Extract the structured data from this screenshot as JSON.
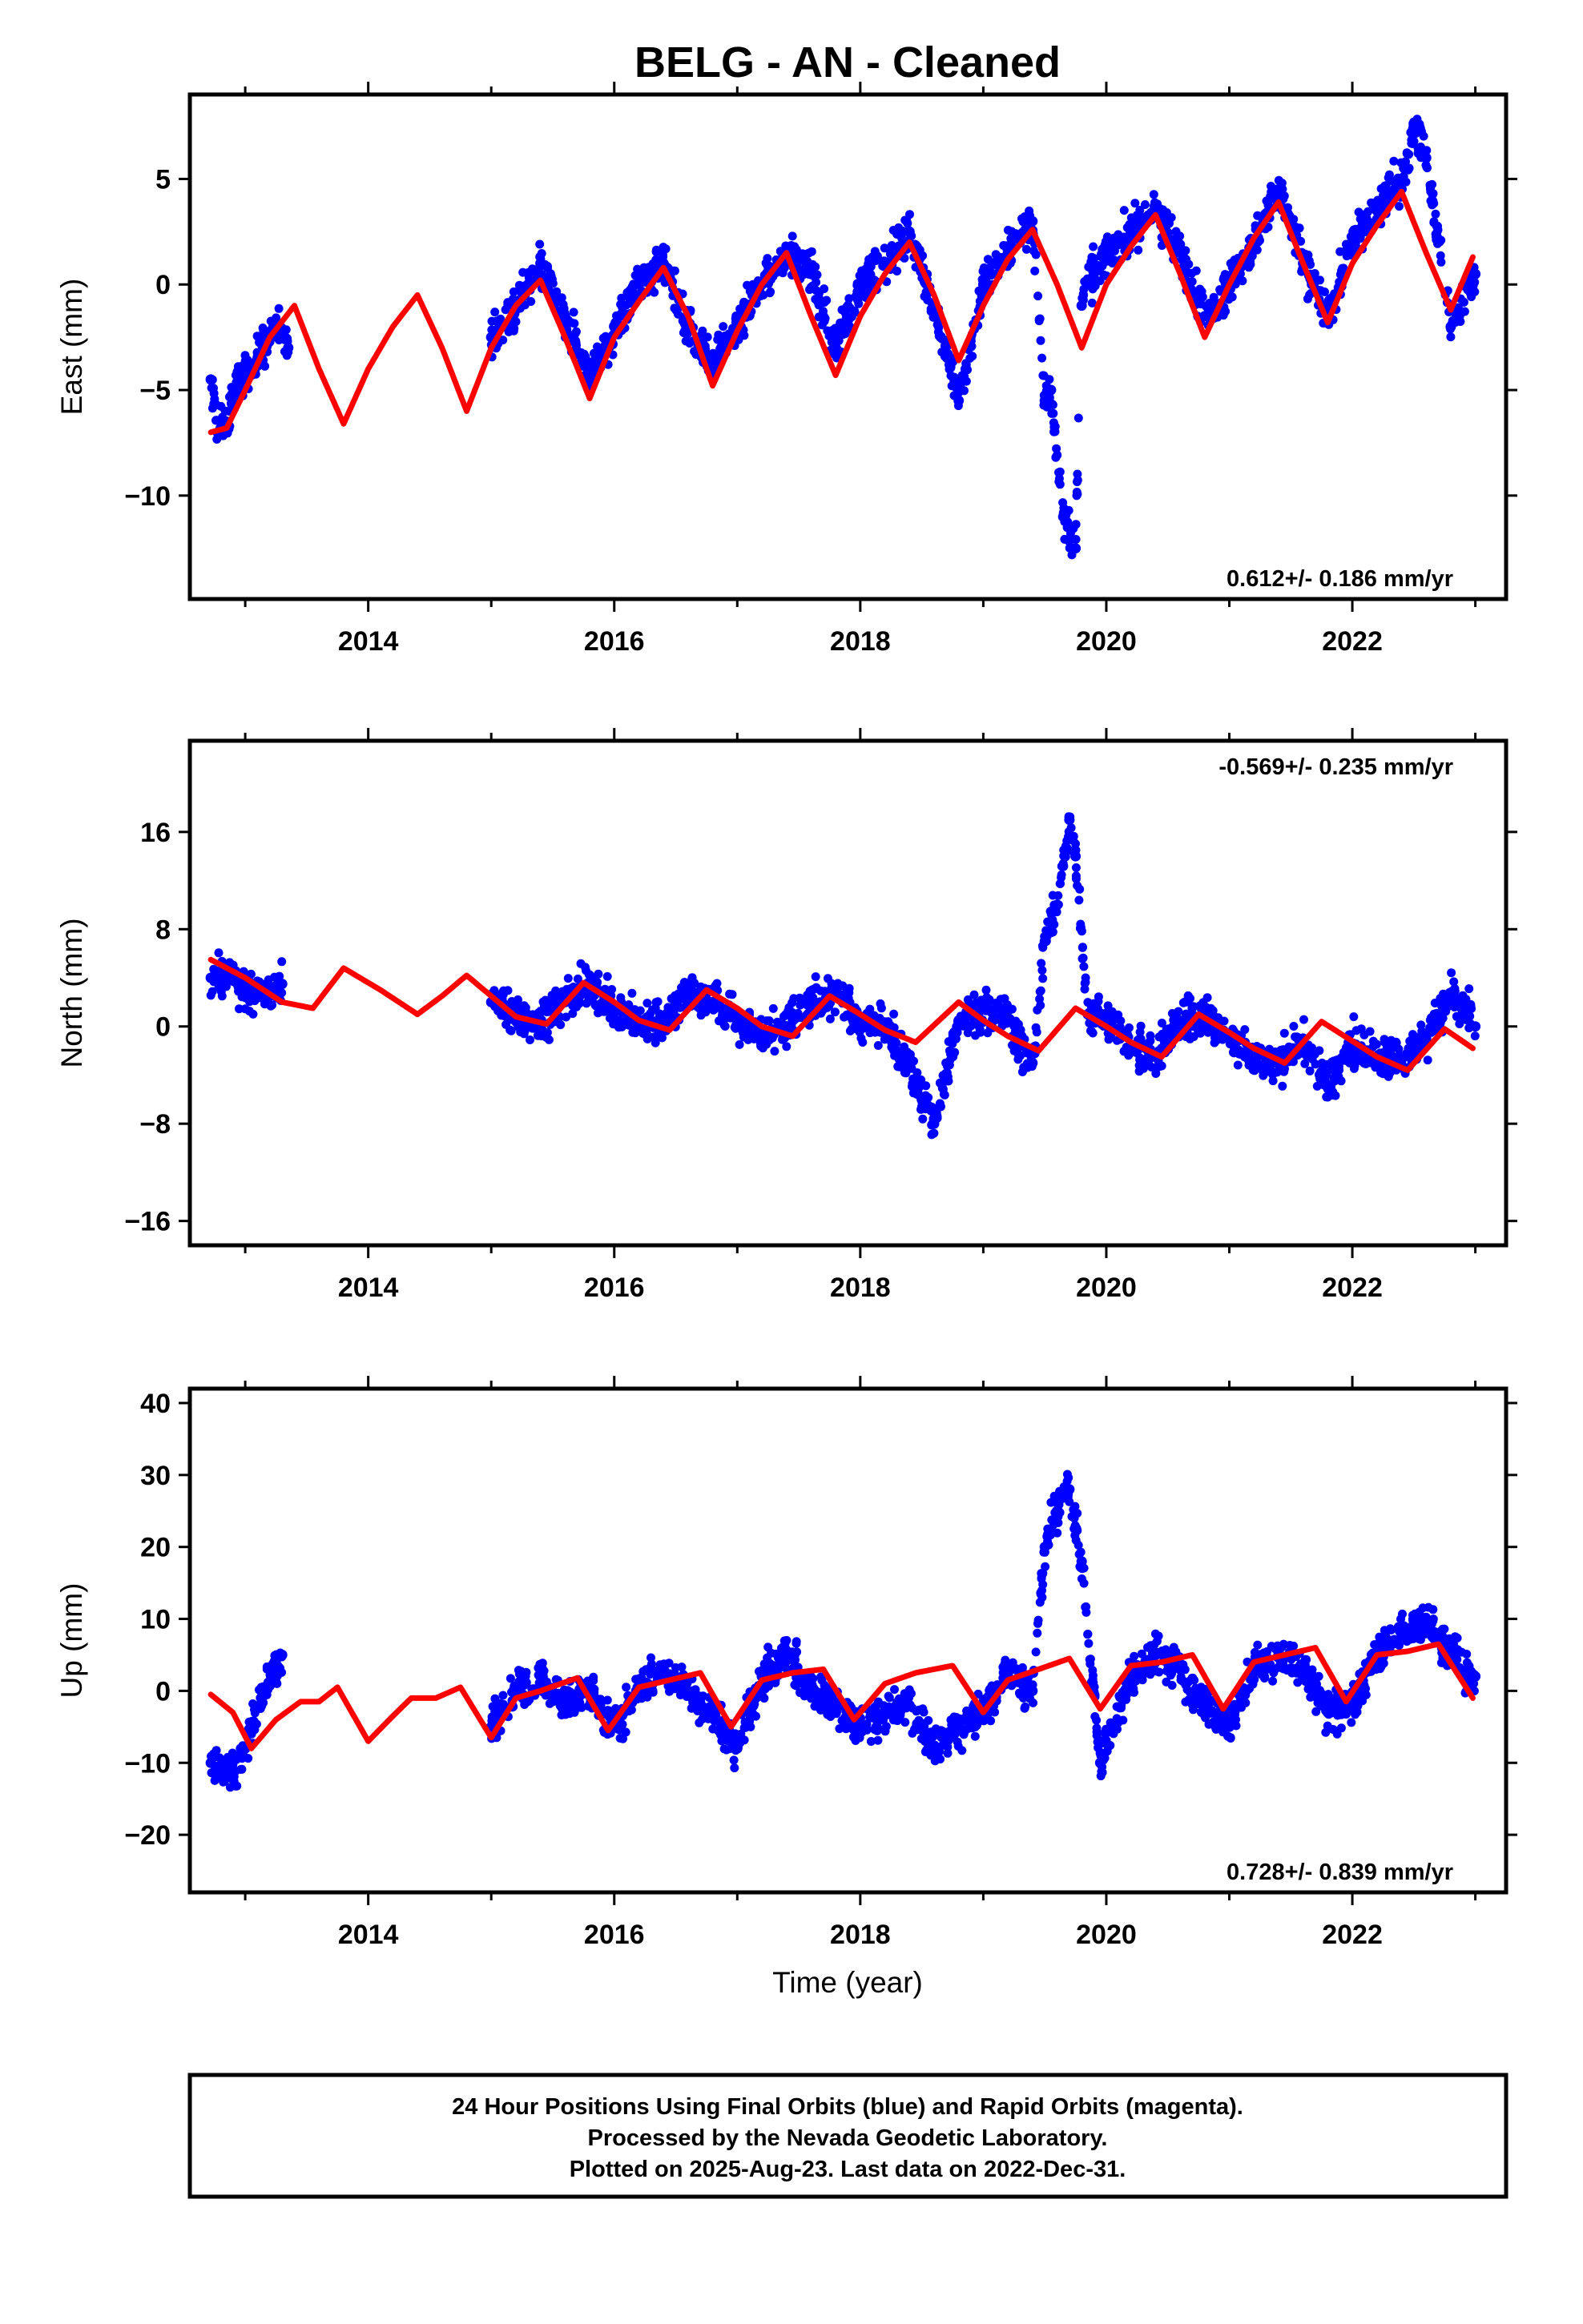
{
  "title": "BELG  - AN - Cleaned",
  "x_axis_label": "Time (year)",
  "footer": {
    "line1": "24 Hour Positions Using Final Orbits (blue) and Rapid Orbits (magenta).",
    "line2": "Processed by the Nevada Geodetic Laboratory.",
    "line3": "Plotted on 2025-Aug-23. Last data on 2022-Dec-31."
  },
  "colors": {
    "points": "#0000ff",
    "model": "#ff0000",
    "axes": "#000000"
  },
  "chart_data": [
    {
      "type": "scatter",
      "component": "East",
      "ylabel": "East (mm)",
      "rate_label": "0.612+/- 0.186 mm/yr",
      "rate_position": "bottom-right",
      "xlim": [
        2012.55,
        2023.25
      ],
      "ylim": [
        -14.9,
        9.0
      ],
      "xticks": [
        2014,
        2016,
        2018,
        2020,
        2022
      ],
      "xticklabels": [
        "2014",
        "2016",
        "2018",
        "2020",
        "2022"
      ],
      "yticks": [
        5,
        0,
        -5,
        -10
      ],
      "yticklabels": [
        "5",
        "0",
        "−5",
        "−10"
      ],
      "series": [
        {
          "kind": "daily_positions",
          "x": [
            2012.72,
            2012.78,
            2012.85,
            2012.92,
            2013.0,
            2013.1,
            2013.2,
            2013.25,
            2013.3,
            2013.35,
            2015.0,
            2015.2,
            2015.4,
            2015.6,
            2015.8,
            2016.0,
            2016.2,
            2016.4,
            2016.6,
            2016.8,
            2017.0,
            2017.2,
            2017.4,
            2017.6,
            2017.8,
            2018.0,
            2018.2,
            2018.4,
            2018.6,
            2018.8,
            2019.0,
            2019.2,
            2019.4,
            2019.5,
            2019.55,
            2019.65,
            2019.75,
            2019.8,
            2019.85,
            2020.0,
            2020.2,
            2020.4,
            2020.6,
            2020.8,
            2021.0,
            2021.2,
            2021.4,
            2021.6,
            2021.8,
            2022.0,
            2022.2,
            2022.4,
            2022.5,
            2022.6,
            2022.8,
            2023.0
          ],
          "y": [
            -4.5,
            -7.0,
            -6.5,
            -5.0,
            -4.0,
            -3.5,
            -2.5,
            -2.0,
            -2.5,
            -3.0,
            -2.5,
            -1.0,
            1.0,
            -1.5,
            -4.5,
            -2.0,
            0.0,
            1.0,
            -2.0,
            -4.0,
            -2.0,
            0.0,
            1.5,
            0.5,
            -3.0,
            0.0,
            1.0,
            2.5,
            -1.0,
            -5.5,
            0.0,
            1.5,
            3.0,
            -5.5,
            -5.0,
            -11.0,
            -12.5,
            -1.0,
            0.0,
            1.5,
            2.5,
            3.5,
            1.5,
            -1.5,
            0.0,
            2.0,
            4.5,
            1.0,
            -1.5,
            2.0,
            3.5,
            5.0,
            7.5,
            6.0,
            -2.0,
            0.5
          ]
        },
        {
          "kind": "model_fit",
          "x": [
            2012.72,
            2012.85,
            2013.0,
            2013.2,
            2013.4,
            2013.6,
            2013.8,
            2014.0,
            2014.2,
            2014.4,
            2014.6,
            2014.8,
            2015.0,
            2015.2,
            2015.4,
            2015.6,
            2015.8,
            2016.0,
            2016.2,
            2016.4,
            2016.6,
            2016.8,
            2017.0,
            2017.2,
            2017.4,
            2017.6,
            2017.8,
            2018.0,
            2018.2,
            2018.4,
            2018.6,
            2018.8,
            2019.0,
            2019.2,
            2019.4,
            2019.6,
            2019.8,
            2020.0,
            2020.2,
            2020.4,
            2020.6,
            2020.8,
            2021.0,
            2021.2,
            2021.4,
            2021.6,
            2021.8,
            2022.0,
            2022.2,
            2022.4,
            2022.6,
            2022.8,
            2022.98
          ],
          "y": [
            -7.0,
            -6.8,
            -5.0,
            -2.5,
            -1.0,
            -4.0,
            -6.6,
            -4.0,
            -2.0,
            -0.5,
            -3.0,
            -6.0,
            -3.0,
            -1.0,
            0.2,
            -2.5,
            -5.4,
            -2.5,
            -0.8,
            0.8,
            -1.5,
            -4.8,
            -2.2,
            0.0,
            1.5,
            -1.5,
            -4.3,
            -1.5,
            0.5,
            2.0,
            -0.5,
            -3.6,
            -1.0,
            1.2,
            2.6,
            0.0,
            -3.0,
            0.0,
            1.8,
            3.3,
            0.5,
            -2.5,
            0.0,
            2.2,
            3.9,
            1.0,
            -1.8,
            1.0,
            2.8,
            4.4,
            1.5,
            -1.2,
            1.3
          ]
        }
      ]
    },
    {
      "type": "scatter",
      "component": "North",
      "ylabel": "North (mm)",
      "rate_label": "-0.569+/- 0.235 mm/yr",
      "rate_position": "top-right",
      "xlim": [
        2012.55,
        2023.25
      ],
      "ylim": [
        -18.0,
        23.5
      ],
      "xticks": [
        2014,
        2016,
        2018,
        2020,
        2022
      ],
      "xticklabels": [
        "2014",
        "2016",
        "2018",
        "2020",
        "2022"
      ],
      "yticks": [
        16,
        8,
        0,
        -8,
        -16
      ],
      "yticklabels": [
        "16",
        "8",
        "0",
        "−8",
        "−16"
      ],
      "series": [
        {
          "kind": "daily_positions",
          "x": [
            2012.72,
            2012.85,
            2013.0,
            2013.15,
            2013.3,
            2015.0,
            2015.2,
            2015.4,
            2015.6,
            2015.8,
            2016.0,
            2016.2,
            2016.4,
            2016.6,
            2016.8,
            2017.0,
            2017.2,
            2017.4,
            2017.6,
            2017.8,
            2018.0,
            2018.2,
            2018.4,
            2018.5,
            2018.6,
            2018.8,
            2019.0,
            2019.2,
            2019.4,
            2019.5,
            2019.6,
            2019.7,
            2019.75,
            2019.85,
            2020.0,
            2020.2,
            2020.4,
            2020.6,
            2020.8,
            2021.0,
            2021.2,
            2021.4,
            2021.6,
            2021.8,
            2022.0,
            2022.2,
            2022.4,
            2022.6,
            2022.8,
            2023.0
          ],
          "y": [
            4.0,
            4.5,
            3.0,
            2.5,
            3.5,
            2.0,
            1.0,
            0.5,
            2.0,
            3.5,
            1.5,
            0.0,
            0.5,
            3.0,
            2.0,
            0.5,
            -1.0,
            0.0,
            2.0,
            2.5,
            0.5,
            -0.5,
            -3.0,
            -6.0,
            -8.0,
            0.5,
            1.5,
            0.5,
            -3.0,
            7.0,
            10.0,
            17.0,
            14.0,
            1.0,
            0.5,
            -1.5,
            -2.5,
            0.5,
            1.0,
            -1.0,
            -2.5,
            -3.0,
            -1.0,
            -5.0,
            -1.5,
            -2.5,
            -2.5,
            -1.0,
            2.5,
            0.0
          ]
        },
        {
          "kind": "model_fit",
          "x": [
            2012.72,
            2013.0,
            2013.3,
            2013.55,
            2013.8,
            2014.1,
            2014.4,
            2014.6,
            2014.8,
            2015.0,
            2015.2,
            2015.45,
            2015.75,
            2016.0,
            2016.2,
            2016.45,
            2016.75,
            2017.0,
            2017.2,
            2017.45,
            2017.75,
            2018.0,
            2018.2,
            2018.45,
            2018.8,
            2019.0,
            2019.2,
            2019.45,
            2019.75,
            2020.0,
            2020.2,
            2020.45,
            2020.75,
            2021.0,
            2021.2,
            2021.45,
            2021.75,
            2022.0,
            2022.2,
            2022.45,
            2022.75,
            2022.98
          ],
          "y": [
            5.5,
            4.0,
            2.0,
            1.5,
            4.8,
            3.0,
            1.0,
            2.5,
            4.2,
            2.5,
            0.8,
            0.2,
            3.6,
            2.0,
            0.5,
            -0.3,
            3.0,
            1.5,
            0.0,
            -0.8,
            2.5,
            1.0,
            -0.3,
            -1.3,
            2.0,
            0.5,
            -0.8,
            -2.0,
            1.5,
            0.0,
            -1.3,
            -2.5,
            1.0,
            -0.5,
            -1.8,
            -3.0,
            0.4,
            -1.2,
            -2.5,
            -3.6,
            -0.2,
            -1.8
          ]
        }
      ]
    },
    {
      "type": "scatter",
      "component": "Up",
      "ylabel": "Up (mm)",
      "rate_label": "0.728+/- 0.839 mm/yr",
      "rate_position": "bottom-right",
      "xlim": [
        2012.55,
        2023.25
      ],
      "ylim": [
        -28.0,
        42.0
      ],
      "xticks": [
        2014,
        2016,
        2018,
        2020,
        2022
      ],
      "xticklabels": [
        "2014",
        "2016",
        "2018",
        "2020",
        "2022"
      ],
      "yticks": [
        40,
        30,
        20,
        10,
        0,
        -10,
        -20
      ],
      "yticklabels": [
        "40",
        "30",
        "20",
        "10",
        "0",
        "−10",
        "−20"
      ],
      "series": [
        {
          "kind": "daily_positions",
          "x": [
            2012.72,
            2012.85,
            2013.0,
            2013.15,
            2013.3,
            2015.0,
            2015.2,
            2015.4,
            2015.6,
            2015.8,
            2016.0,
            2016.2,
            2016.4,
            2016.6,
            2016.8,
            2017.0,
            2017.2,
            2017.4,
            2017.6,
            2017.8,
            2018.0,
            2018.2,
            2018.4,
            2018.6,
            2018.8,
            2019.0,
            2019.2,
            2019.4,
            2019.5,
            2019.6,
            2019.7,
            2019.8,
            2019.95,
            2020.2,
            2020.4,
            2020.6,
            2020.8,
            2021.0,
            2021.2,
            2021.4,
            2021.6,
            2021.8,
            2022.0,
            2022.2,
            2022.4,
            2022.6,
            2022.8,
            2023.0
          ],
          "y": [
            -10.0,
            -12.0,
            -8.0,
            0.0,
            5.0,
            -5.0,
            0.0,
            2.0,
            -2.0,
            0.0,
            -5.0,
            0.0,
            3.0,
            0.0,
            -3.0,
            -8.0,
            2.0,
            5.0,
            0.0,
            -2.0,
            -5.0,
            -3.0,
            -2.0,
            -8.0,
            -5.0,
            -3.0,
            2.0,
            0.0,
            20.0,
            25.0,
            28.0,
            18.0,
            -10.0,
            2.0,
            5.0,
            3.0,
            -2.0,
            -5.0,
            3.0,
            5.0,
            3.0,
            -3.0,
            -2.0,
            5.0,
            8.0,
            10.0,
            5.0,
            2.0
          ]
        },
        {
          "kind": "model_fit",
          "x": [
            2012.72,
            2012.9,
            2013.05,
            2013.25,
            2013.45,
            2013.6,
            2013.75,
            2014.0,
            2014.2,
            2014.35,
            2014.55,
            2014.75,
            2015.0,
            2015.2,
            2015.4,
            2015.7,
            2015.95,
            2016.2,
            2016.45,
            2016.7,
            2016.95,
            2017.2,
            2017.45,
            2017.7,
            2017.95,
            2018.2,
            2018.45,
            2018.75,
            2019.0,
            2019.2,
            2019.45,
            2019.7,
            2019.95,
            2020.2,
            2020.45,
            2020.7,
            2020.95,
            2021.2,
            2021.45,
            2021.7,
            2021.95,
            2022.2,
            2022.45,
            2022.7,
            2022.98
          ],
          "y": [
            -0.5,
            -3.0,
            -8.0,
            -4.0,
            -1.5,
            -1.5,
            0.5,
            -7.0,
            -3.5,
            -1.0,
            -1.0,
            0.5,
            -6.5,
            -1.0,
            0.0,
            1.8,
            -5.5,
            0.5,
            1.5,
            2.5,
            -5.0,
            1.5,
            2.5,
            3.0,
            -4.0,
            1.0,
            2.5,
            3.5,
            -3.0,
            1.5,
            3.0,
            4.5,
            -2.5,
            3.5,
            4.0,
            5.0,
            -2.5,
            4.0,
            5.0,
            6.0,
            -1.5,
            5.0,
            5.5,
            6.5,
            -1.0
          ]
        }
      ]
    }
  ]
}
